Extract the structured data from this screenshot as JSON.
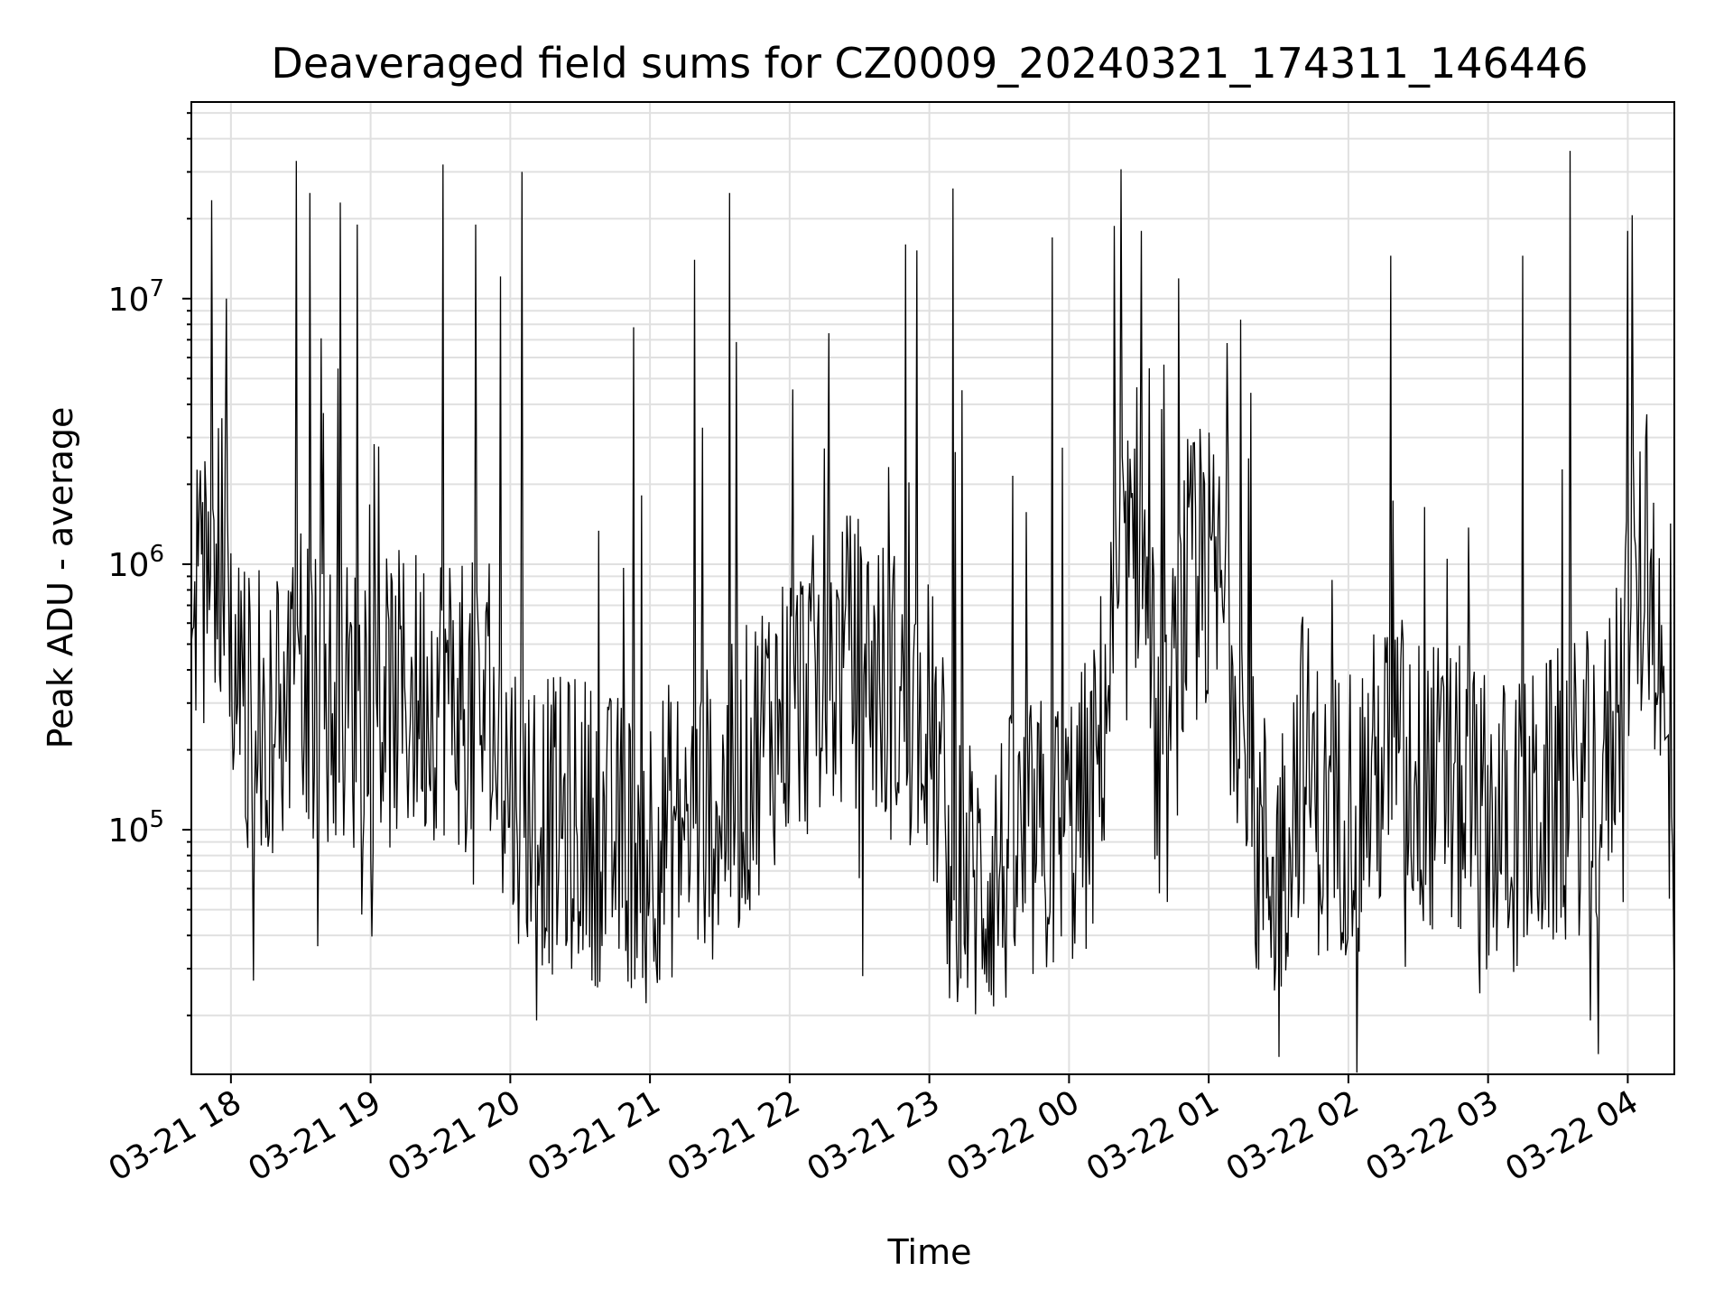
{
  "chart_data": {
    "type": "line",
    "title": "Deaveraged field sums for CZ0009_20240321_174311_146446",
    "xlabel": "Time",
    "ylabel": "Peak ADU - average",
    "yscale": "log",
    "ylim": [
      12000,
      55000000
    ],
    "xlim": [
      "2024-03-21 17:43",
      "2024-03-22 04:20"
    ],
    "grid": true,
    "line_color": "#000000",
    "grid_color": "#e0e0e0",
    "x_ticks": [
      {
        "value": "2024-03-21 18:00",
        "label": "03-21 18"
      },
      {
        "value": "2024-03-21 19:00",
        "label": "03-21 19"
      },
      {
        "value": "2024-03-21 20:00",
        "label": "03-21 20"
      },
      {
        "value": "2024-03-21 21:00",
        "label": "03-21 21"
      },
      {
        "value": "2024-03-21 22:00",
        "label": "03-21 22"
      },
      {
        "value": "2024-03-21 23:00",
        "label": "03-21 23"
      },
      {
        "value": "2024-03-22 00:00",
        "label": "03-22 00"
      },
      {
        "value": "2024-03-22 01:00",
        "label": "03-22 01"
      },
      {
        "value": "2024-03-22 02:00",
        "label": "03-22 02"
      },
      {
        "value": "2024-03-22 03:00",
        "label": "03-22 03"
      },
      {
        "value": "2024-03-22 04:00",
        "label": "03-22 04"
      }
    ],
    "y_ticks": [
      {
        "value": 100000,
        "base": "10",
        "exp": "5"
      },
      {
        "value": 1000000,
        "base": "10",
        "exp": "6"
      },
      {
        "value": 10000000,
        "base": "10",
        "exp": "7"
      }
    ],
    "series": [
      {
        "x": [
          "2024-03-21 17:43",
          "2024-03-21 17:50",
          "2024-03-21 17:58",
          "2024-03-21 18:02",
          "2024-03-21 18:10",
          "2024-03-21 18:20",
          "2024-03-21 18:30",
          "2024-03-21 18:40",
          "2024-03-21 18:50",
          "2024-03-21 19:00",
          "2024-03-21 19:10",
          "2024-03-21 19:20",
          "2024-03-21 19:30",
          "2024-03-21 19:40",
          "2024-03-21 19:50",
          "2024-03-21 20:00",
          "2024-03-21 20:10",
          "2024-03-21 20:20",
          "2024-03-21 20:30",
          "2024-03-21 20:40",
          "2024-03-21 20:50",
          "2024-03-21 21:00",
          "2024-03-21 21:10",
          "2024-03-21 21:20",
          "2024-03-21 21:30",
          "2024-03-21 21:40",
          "2024-03-21 21:50",
          "2024-03-21 22:00",
          "2024-03-21 22:10",
          "2024-03-21 22:20",
          "2024-03-21 22:30",
          "2024-03-21 22:40",
          "2024-03-21 22:50",
          "2024-03-21 23:00",
          "2024-03-21 23:10",
          "2024-03-21 23:20",
          "2024-03-21 23:30",
          "2024-03-21 23:40",
          "2024-03-21 23:50",
          "2024-03-22 00:00",
          "2024-03-22 00:10",
          "2024-03-22 00:20",
          "2024-03-22 00:30",
          "2024-03-22 00:40",
          "2024-03-22 00:50",
          "2024-03-22 01:00",
          "2024-03-22 01:10",
          "2024-03-22 01:20",
          "2024-03-22 01:30",
          "2024-03-22 01:40",
          "2024-03-22 01:50",
          "2024-03-22 02:00",
          "2024-03-22 02:10",
          "2024-03-22 02:20",
          "2024-03-22 02:30",
          "2024-03-22 02:40",
          "2024-03-22 02:50",
          "2024-03-22 03:00",
          "2024-03-22 03:10",
          "2024-03-22 03:20",
          "2024-03-22 03:30",
          "2024-03-22 03:40",
          "2024-03-22 03:50",
          "2024-03-22 04:00",
          "2024-03-22 04:10",
          "2024-03-22 04:20"
        ],
        "y": [
          700000,
          900000,
          1100000,
          300000,
          250000,
          300000,
          350000,
          300000,
          300000,
          280000,
          300000,
          320000,
          350000,
          300000,
          250000,
          150000,
          120000,
          100000,
          110000,
          90000,
          90000,
          95000,
          100000,
          110000,
          120000,
          150000,
          250000,
          300000,
          350000,
          400000,
          450000,
          350000,
          300000,
          250000,
          80000,
          60000,
          70000,
          80000,
          90000,
          100000,
          130000,
          600000,
          1500000,
          120000,
          800000,
          900000,
          600000,
          90000,
          70000,
          200000,
          100000,
          130000,
          150000,
          200000,
          150000,
          140000,
          130000,
          110000,
          100000,
          110000,
          130000,
          150000,
          150000,
          600000,
          1100000,
          60000
        ]
      }
    ],
    "spikes": [
      {
        "x": "2024-03-21 17:58",
        "y": 10000000
      },
      {
        "x": "2024-03-21 18:28",
        "y": 33000000
      },
      {
        "x": "2024-03-21 18:34",
        "y": 25000000
      },
      {
        "x": "2024-03-21 18:47",
        "y": 23000000
      },
      {
        "x": "2024-03-21 18:54",
        "y": 19000000
      },
      {
        "x": "2024-03-21 19:31",
        "y": 32000000
      },
      {
        "x": "2024-03-21 19:45",
        "y": 19000000
      },
      {
        "x": "2024-03-21 20:05",
        "y": 30000000
      },
      {
        "x": "2024-03-21 20:53",
        "y": 7800000
      },
      {
        "x": "2024-03-21 21:19",
        "y": 14000000
      },
      {
        "x": "2024-03-21 21:34",
        "y": 25000000
      },
      {
        "x": "2024-03-21 22:50",
        "y": 16000000
      },
      {
        "x": "2024-03-21 23:10",
        "y": 26000000
      },
      {
        "x": "2024-03-21 23:53",
        "y": 17000000
      },
      {
        "x": "2024-03-22 00:31",
        "y": 18000000
      },
      {
        "x": "2024-03-22 02:18",
        "y": 14500000
      },
      {
        "x": "2024-03-22 03:15",
        "y": 14500000
      },
      {
        "x": "2024-03-22 03:35",
        "y": 36000000
      },
      {
        "x": "2024-03-22 04:00",
        "y": 18000000
      }
    ]
  }
}
